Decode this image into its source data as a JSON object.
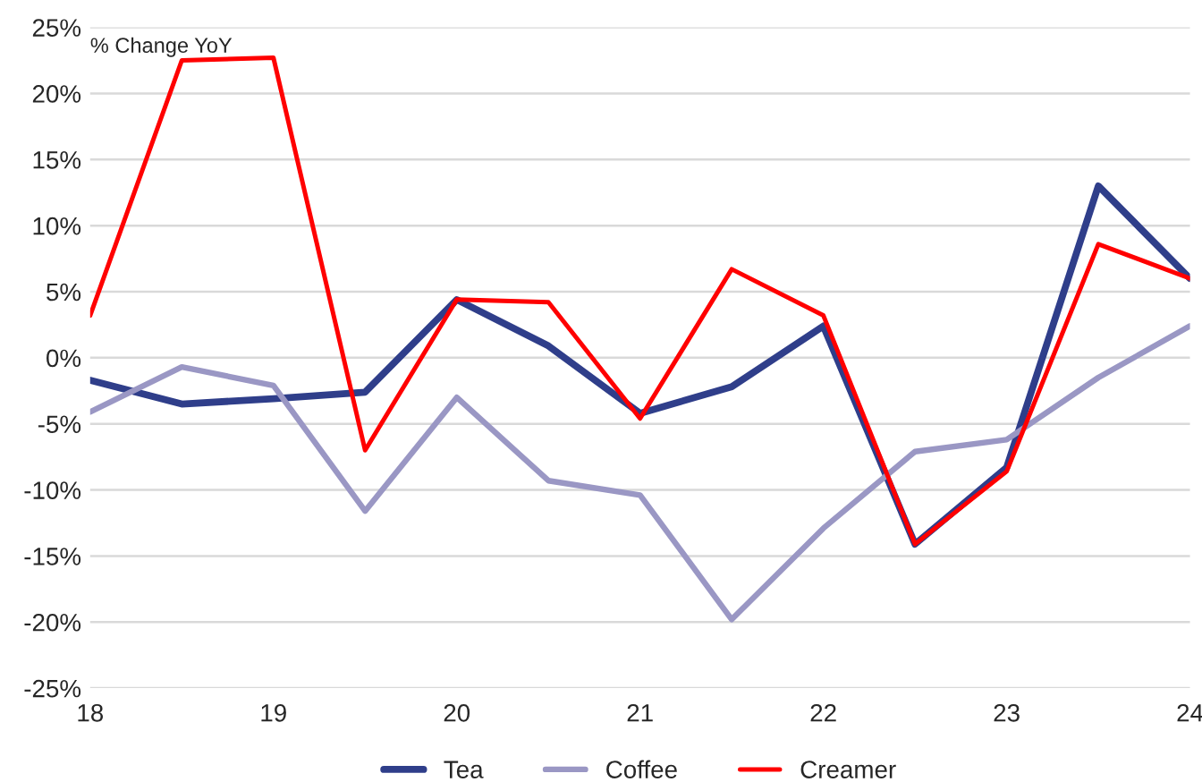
{
  "chart_data": {
    "type": "line",
    "ylabel": "% Change YoY",
    "x": [
      18,
      18.5,
      19,
      19.5,
      20,
      20.5,
      21,
      21.5,
      22,
      22.5,
      23,
      23.5,
      24
    ],
    "series": [
      {
        "name": "Tea",
        "color": "#2f3e8a",
        "values": [
          -1.7,
          -3.5,
          -3.1,
          -2.6,
          4.4,
          0.9,
          -4.2,
          -2.2,
          2.4,
          -14.1,
          -8.3,
          13.0,
          6.0
        ]
      },
      {
        "name": "Coffee",
        "color": "#9a97c4",
        "values": [
          -4.1,
          -0.7,
          -2.1,
          -11.6,
          -3.0,
          -9.3,
          -10.4,
          -19.8,
          -12.9,
          -7.1,
          -6.2,
          -1.5,
          2.4
        ]
      },
      {
        "name": "Creamer",
        "color": "#ff0000",
        "values": [
          3.2,
          22.5,
          22.7,
          -7.0,
          4.4,
          4.2,
          -4.6,
          6.7,
          3.2,
          -14.1,
          -8.6,
          8.6,
          6.0
        ]
      }
    ],
    "xlim": [
      18,
      24
    ],
    "xticks": [
      18,
      19,
      20,
      21,
      22,
      23,
      24
    ],
    "ylim": [
      -25,
      25
    ],
    "yticks": [
      {
        "value": -25,
        "label": "-25%"
      },
      {
        "value": -20,
        "label": "-20%"
      },
      {
        "value": -15,
        "label": "-15%"
      },
      {
        "value": -10,
        "label": "-10%"
      },
      {
        "value": -5,
        "label": "-5%"
      },
      {
        "value": 0,
        "label": "0%"
      },
      {
        "value": 5,
        "label": "5%"
      },
      {
        "value": 10,
        "label": "10%"
      },
      {
        "value": 15,
        "label": "15%"
      },
      {
        "value": 20,
        "label": "20%"
      },
      {
        "value": 25,
        "label": "25%"
      }
    ],
    "grid": "y",
    "legend": "bottom"
  }
}
